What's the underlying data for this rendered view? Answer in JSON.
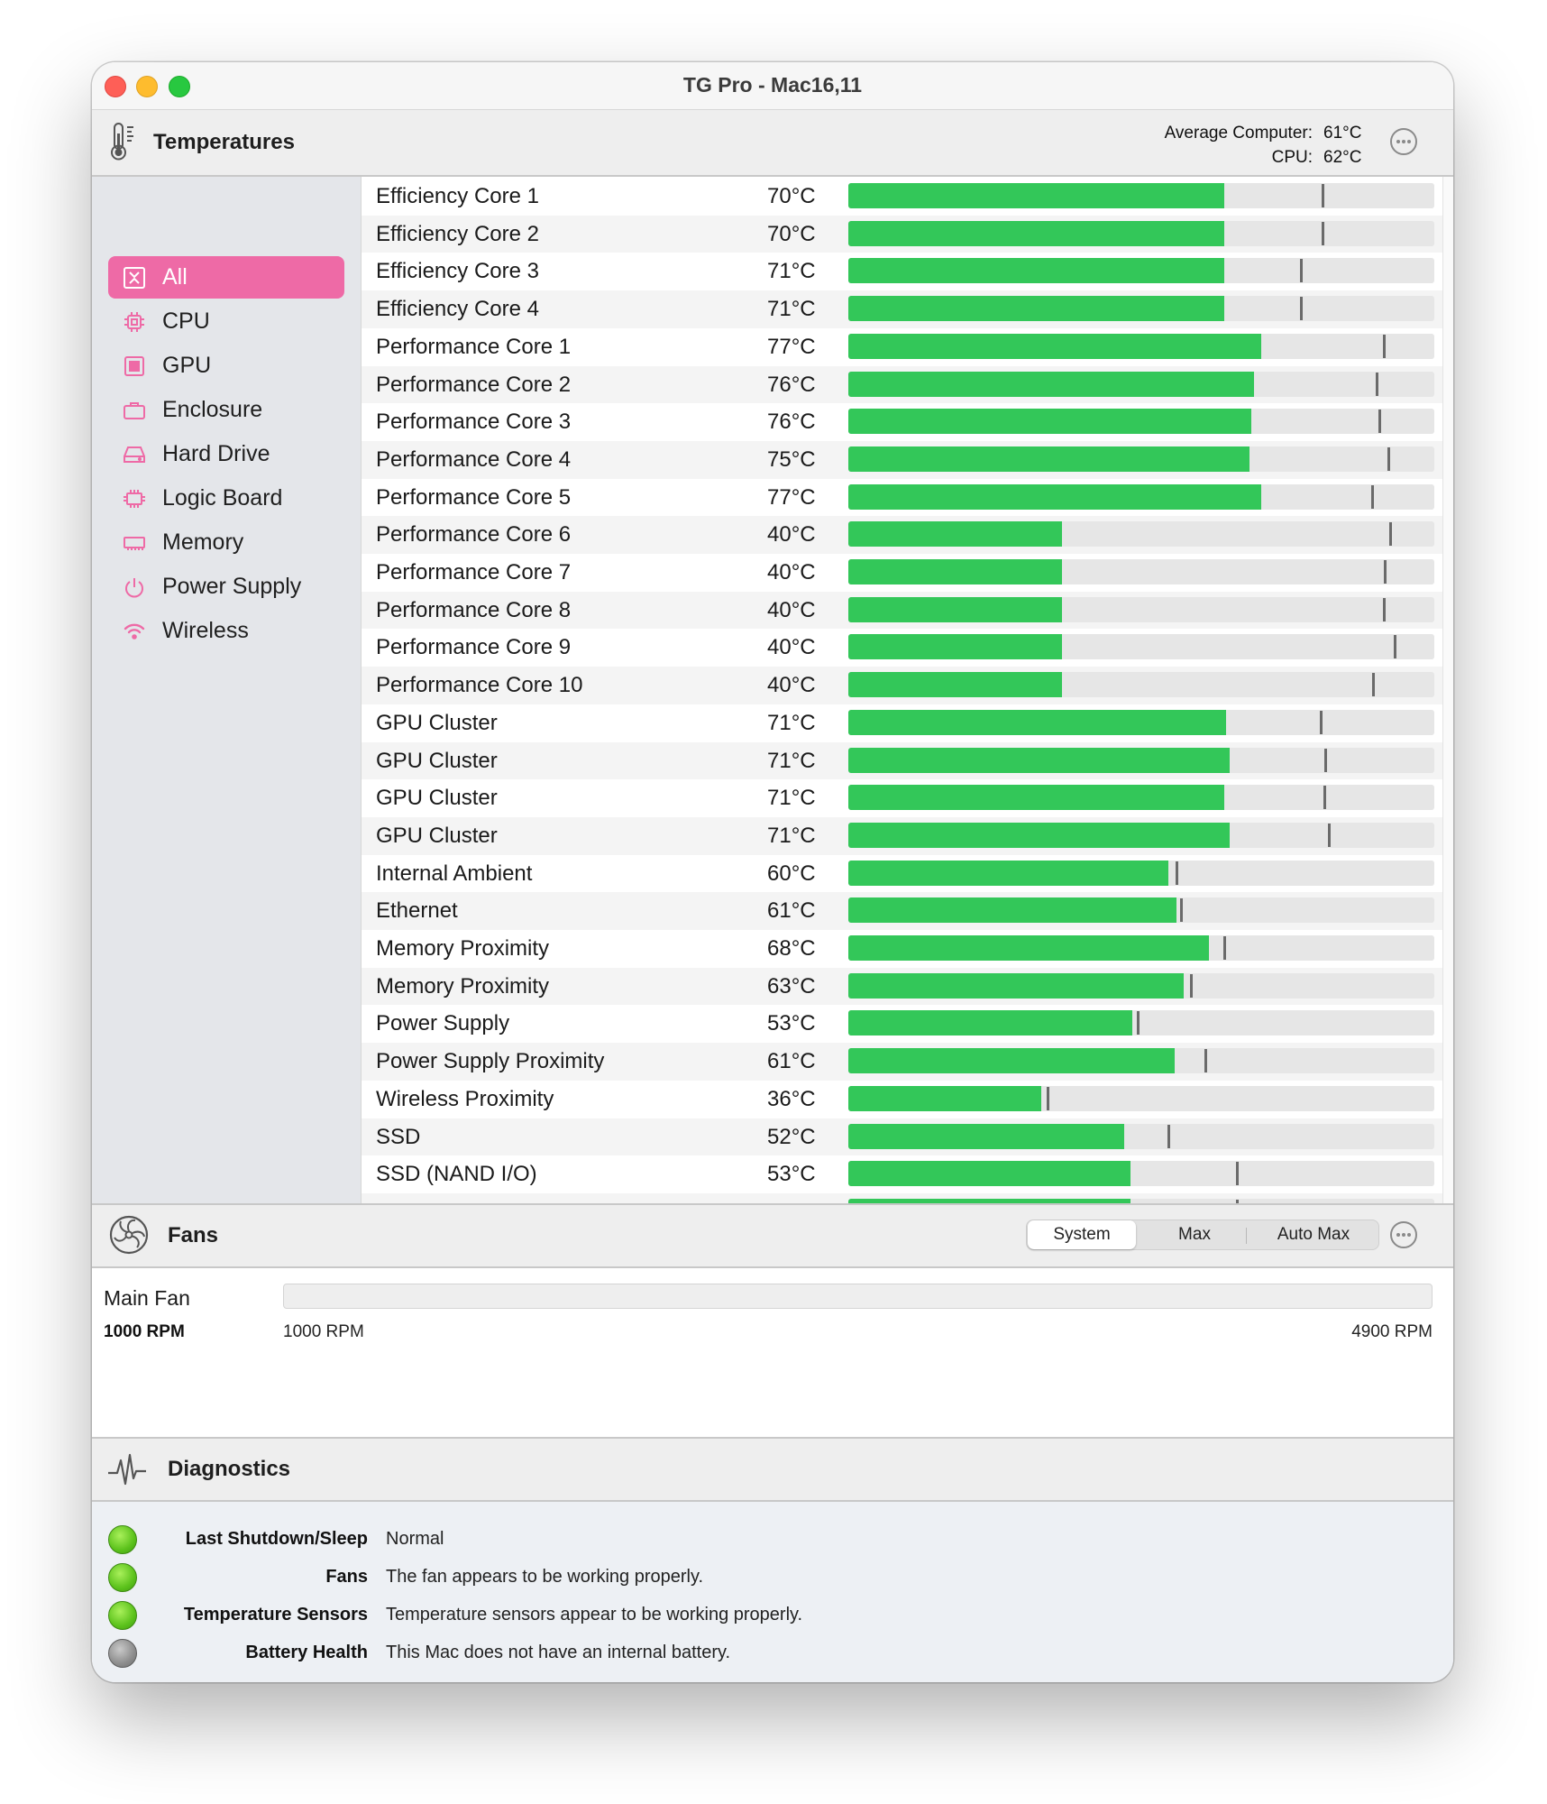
{
  "window": {
    "title": "TG Pro - Mac16,11"
  },
  "temperatures": {
    "title": "Temperatures",
    "avg_computer_label": "Average Computer:",
    "avg_computer_value": "61°C",
    "cpu_label": "CPU:",
    "cpu_value": "62°C"
  },
  "sidebar": {
    "items": [
      {
        "label": "All",
        "icon": "all-icon",
        "active": true
      },
      {
        "label": "CPU",
        "icon": "cpu-icon"
      },
      {
        "label": "GPU",
        "icon": "gpu-icon"
      },
      {
        "label": "Enclosure",
        "icon": "enclosure-icon"
      },
      {
        "label": "Hard Drive",
        "icon": "hard-drive-icon"
      },
      {
        "label": "Logic Board",
        "icon": "logic-board-icon"
      },
      {
        "label": "Memory",
        "icon": "memory-icon"
      },
      {
        "label": "Power Supply",
        "icon": "power-supply-icon"
      },
      {
        "label": "Wireless",
        "icon": "wireless-icon"
      }
    ]
  },
  "sensors": [
    {
      "name": "Efficiency Core 1",
      "value": "70°C",
      "level": 0.642,
      "max": 0.807
    },
    {
      "name": "Efficiency Core 2",
      "value": "70°C",
      "level": 0.642,
      "max": 0.807
    },
    {
      "name": "Efficiency Core 3",
      "value": "71°C",
      "level": 0.642,
      "max": 0.771
    },
    {
      "name": "Efficiency Core 4",
      "value": "71°C",
      "level": 0.642,
      "max": 0.771
    },
    {
      "name": "Performance Core 1",
      "value": "77°C",
      "level": 0.704,
      "max": 0.912
    },
    {
      "name": "Performance Core 2",
      "value": "76°C",
      "level": 0.693,
      "max": 0.9
    },
    {
      "name": "Performance Core 3",
      "value": "76°C",
      "level": 0.688,
      "max": 0.904
    },
    {
      "name": "Performance Core 4",
      "value": "75°C",
      "level": 0.685,
      "max": 0.92
    },
    {
      "name": "Performance Core 5",
      "value": "77°C",
      "level": 0.704,
      "max": 0.892
    },
    {
      "name": "Performance Core 6",
      "value": "40°C",
      "level": 0.364,
      "max": 0.923
    },
    {
      "name": "Performance Core 7",
      "value": "40°C",
      "level": 0.364,
      "max": 0.914
    },
    {
      "name": "Performance Core 8",
      "value": "40°C",
      "level": 0.364,
      "max": 0.912
    },
    {
      "name": "Performance Core 9",
      "value": "40°C",
      "level": 0.364,
      "max": 0.931
    },
    {
      "name": "Performance Core 10",
      "value": "40°C",
      "level": 0.364,
      "max": 0.894
    },
    {
      "name": "GPU Cluster",
      "value": "71°C",
      "level": 0.644,
      "max": 0.804
    },
    {
      "name": "GPU Cluster",
      "value": "71°C",
      "level": 0.65,
      "max": 0.812
    },
    {
      "name": "GPU Cluster",
      "value": "71°C",
      "level": 0.642,
      "max": 0.81
    },
    {
      "name": "GPU Cluster",
      "value": "71°C",
      "level": 0.65,
      "max": 0.819
    },
    {
      "name": "Internal Ambient",
      "value": "60°C",
      "level": 0.546,
      "max": 0.558
    },
    {
      "name": "Ethernet",
      "value": "61°C",
      "level": 0.56,
      "max": 0.566
    },
    {
      "name": "Memory Proximity",
      "value": "68°C",
      "level": 0.615,
      "max": 0.64
    },
    {
      "name": "Memory Proximity",
      "value": "63°C",
      "level": 0.573,
      "max": 0.583
    },
    {
      "name": "Power Supply",
      "value": "53°C",
      "level": 0.485,
      "max": 0.493
    },
    {
      "name": "Power Supply Proximity",
      "value": "61°C",
      "level": 0.557,
      "max": 0.608
    },
    {
      "name": "Wireless Proximity",
      "value": "36°C",
      "level": 0.329,
      "max": 0.338
    },
    {
      "name": "SSD",
      "value": "52°C",
      "level": 0.47,
      "max": 0.544
    },
    {
      "name": "SSD (NAND I/O)",
      "value": "53°C",
      "level": 0.481,
      "max": 0.662
    },
    {
      "name": "",
      "value": "",
      "level": 0.481,
      "max": 0.662
    }
  ],
  "fans": {
    "title": "Fans",
    "modes": [
      "System",
      "Max",
      "Auto Max"
    ],
    "selected_mode": "System",
    "main_fan": {
      "name": "Main Fan",
      "current": "1000 RPM",
      "min": "1000 RPM",
      "max": "4900 RPM",
      "level": 0
    }
  },
  "diagnostics": {
    "title": "Diagnostics",
    "items": [
      {
        "label": "Last Shutdown/Sleep",
        "text": "Normal",
        "status": "green"
      },
      {
        "label": "Fans",
        "text": "The fan appears to be working properly.",
        "status": "green"
      },
      {
        "label": "Temperature Sensors",
        "text": "Temperature sensors appear to be working properly.",
        "status": "green"
      },
      {
        "label": "Battery Health",
        "text": "This Mac does not have an internal battery.",
        "status": "gray"
      }
    ]
  },
  "colors": {
    "accent": "#ee6aa6",
    "bar_fill": "#33c759",
    "bar_track": "#e6e6e6",
    "marker": "#6a6a6a"
  }
}
